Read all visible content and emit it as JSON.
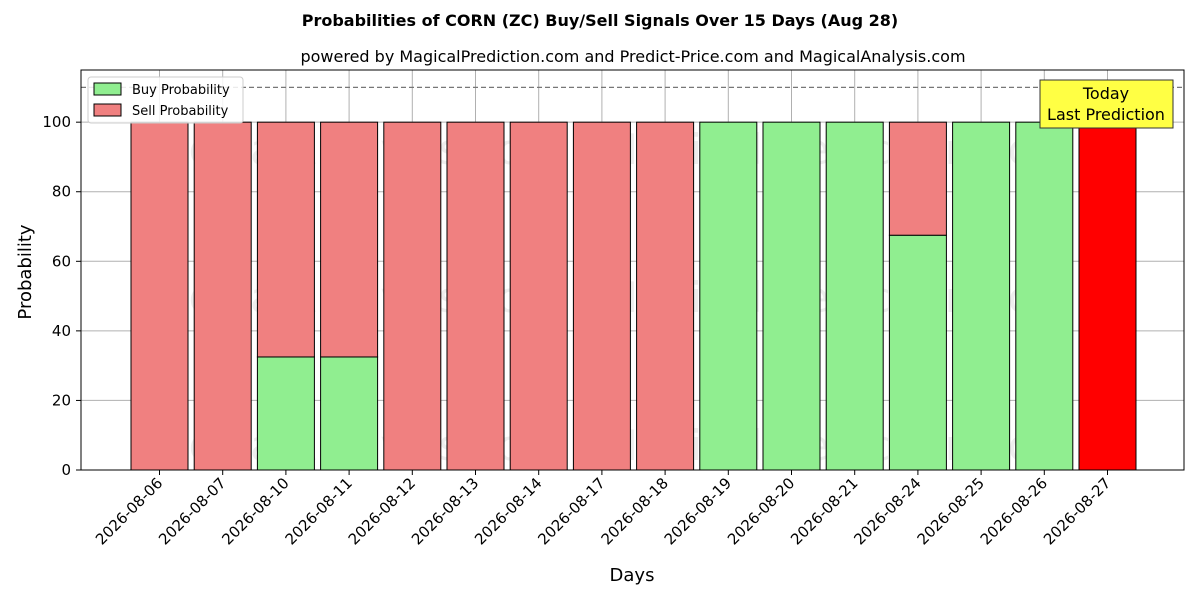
{
  "chart_data": {
    "type": "bar",
    "title": "Probabilities of CORN (ZC) Buy/Sell Signals Over 15 Days (Aug 28)",
    "subtitle": "powered by MagicalPrediction.com and Predict-Price.com and MagicalAnalysis.com",
    "xlabel": "Days",
    "ylabel": "Probability",
    "ylim": [
      0,
      115
    ],
    "yticks": [
      "0",
      "20",
      "40",
      "60",
      "80",
      "100"
    ],
    "threshold_line": 110,
    "grid": true,
    "legend_position": "top-left",
    "categories": [
      "2026-08-06",
      "2026-08-07",
      "2026-08-10",
      "2026-08-11",
      "2026-08-12",
      "2026-08-13",
      "2026-08-14",
      "2026-08-17",
      "2026-08-18",
      "2026-08-19",
      "2026-08-20",
      "2026-08-21",
      "2026-08-24",
      "2026-08-25",
      "2026-08-26",
      "2026-08-27"
    ],
    "series": [
      {
        "name": "Buy Probability",
        "color": "#90ee90",
        "values": [
          0,
          0,
          32.5,
          32.5,
          0,
          0,
          0,
          0,
          0,
          100,
          100,
          100,
          67.5,
          100,
          100,
          0
        ]
      },
      {
        "name": "Sell Probability",
        "color": "#f08080",
        "values": [
          100,
          100,
          67.5,
          67.5,
          100,
          100,
          100,
          100,
          100,
          0,
          0,
          0,
          32.5,
          0,
          0,
          100
        ]
      }
    ],
    "highlight": {
      "index": 15,
      "color": "#ff0000",
      "annotation_line1": "Today",
      "annotation_line2": "Last Prediction",
      "annotation_color": "#ffff44"
    },
    "watermarks": [
      "MagicalAnalysis.com",
      "MagicalPrediction.com"
    ]
  }
}
